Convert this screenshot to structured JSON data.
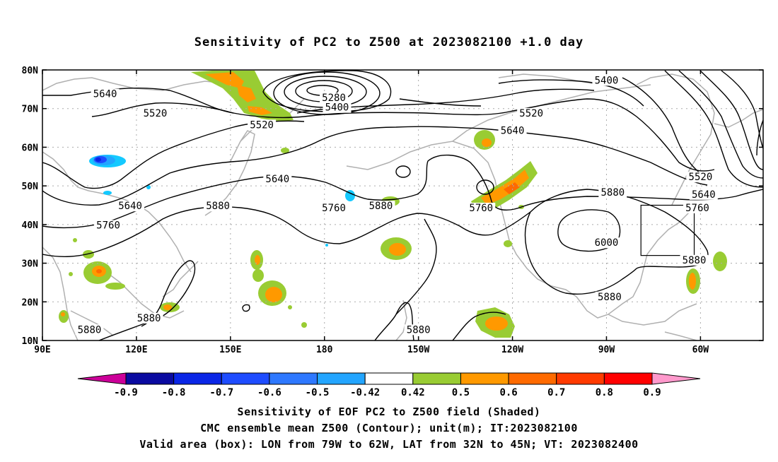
{
  "title": "Sensitivity of PC2 to Z500 at 2023082100 +1.0 day",
  "map": {
    "lat_labels": [
      "80N",
      "70N",
      "60N",
      "50N",
      "40N",
      "30N",
      "20N",
      "10N"
    ],
    "lon_labels": [
      "90E",
      "120E",
      "150E",
      "180",
      "150W",
      "120W",
      "90W",
      "60W"
    ],
    "contour_labels": [
      {
        "text": "5640",
        "lon": 110,
        "lat": 73.5
      },
      {
        "text": "5520",
        "lon": 126,
        "lat": 68.5
      },
      {
        "text": "5280",
        "lon": 183,
        "lat": 72.5
      },
      {
        "text": "5400",
        "lon": 184,
        "lat": 70
      },
      {
        "text": "5520",
        "lon": 160,
        "lat": 65.5
      },
      {
        "text": "5400",
        "lon": 270,
        "lat": 77
      },
      {
        "text": "5520",
        "lon": 246,
        "lat": 68.5
      },
      {
        "text": "5640",
        "lon": 240,
        "lat": 64
      },
      {
        "text": "5640",
        "lon": 165,
        "lat": 51.5
      },
      {
        "text": "5640",
        "lon": 118,
        "lat": 44.5
      },
      {
        "text": "5880",
        "lon": 146,
        "lat": 44.5
      },
      {
        "text": "5760",
        "lon": 111,
        "lat": 39.5
      },
      {
        "text": "5760",
        "lon": 183,
        "lat": 44
      },
      {
        "text": "5880",
        "lon": 198,
        "lat": 44.5
      },
      {
        "text": "5760",
        "lon": 230,
        "lat": 44
      },
      {
        "text": "5880",
        "lon": 272,
        "lat": 48
      },
      {
        "text": "5520",
        "lon": 300,
        "lat": 52
      },
      {
        "text": "5640",
        "lon": 301,
        "lat": 47.5
      },
      {
        "text": "5760",
        "lon": 299,
        "lat": 44
      },
      {
        "text": "6000",
        "lon": 270,
        "lat": 35
      },
      {
        "text": "5880",
        "lon": 298,
        "lat": 30.5
      },
      {
        "text": "5880",
        "lon": 271,
        "lat": 21
      },
      {
        "text": "5880",
        "lon": 124,
        "lat": 15.5
      },
      {
        "text": "5880",
        "lon": 105,
        "lat": 12.5
      },
      {
        "text": "5880",
        "lon": 210,
        "lat": 12.5
      }
    ]
  },
  "colorbar": {
    "labels": [
      "-0.9",
      "-0.8",
      "-0.7",
      "-0.6",
      "-0.5",
      "-0.42",
      "0.42",
      "0.5",
      "0.6",
      "0.7",
      "0.8",
      "0.9"
    ],
    "colors": [
      "#0a0aa0",
      "#0a26e6",
      "#1e4cff",
      "#2e78ff",
      "#23a5ff",
      "#14c9ff",
      "#ffffff",
      "#99cc33",
      "#ff9900",
      "#ff6a00",
      "#ff3a00",
      "#ff0000"
    ],
    "under_color": "#cc0099",
    "over_color": "#ff99cc"
  },
  "captions": {
    "line1": "Sensitivity of EOF PC2 to Z500 field (Shaded)",
    "line2": "CMC ensemble mean Z500 (Contour); unit(m); IT:2023082100",
    "line3": "Valid area (box): LON from 79W to 62W, LAT from 32N to 45N; VT: 2023082400"
  },
  "valid_box": {
    "lon_min": -79,
    "lon_max": -62,
    "lat_min": 32,
    "lat_max": 45
  }
}
